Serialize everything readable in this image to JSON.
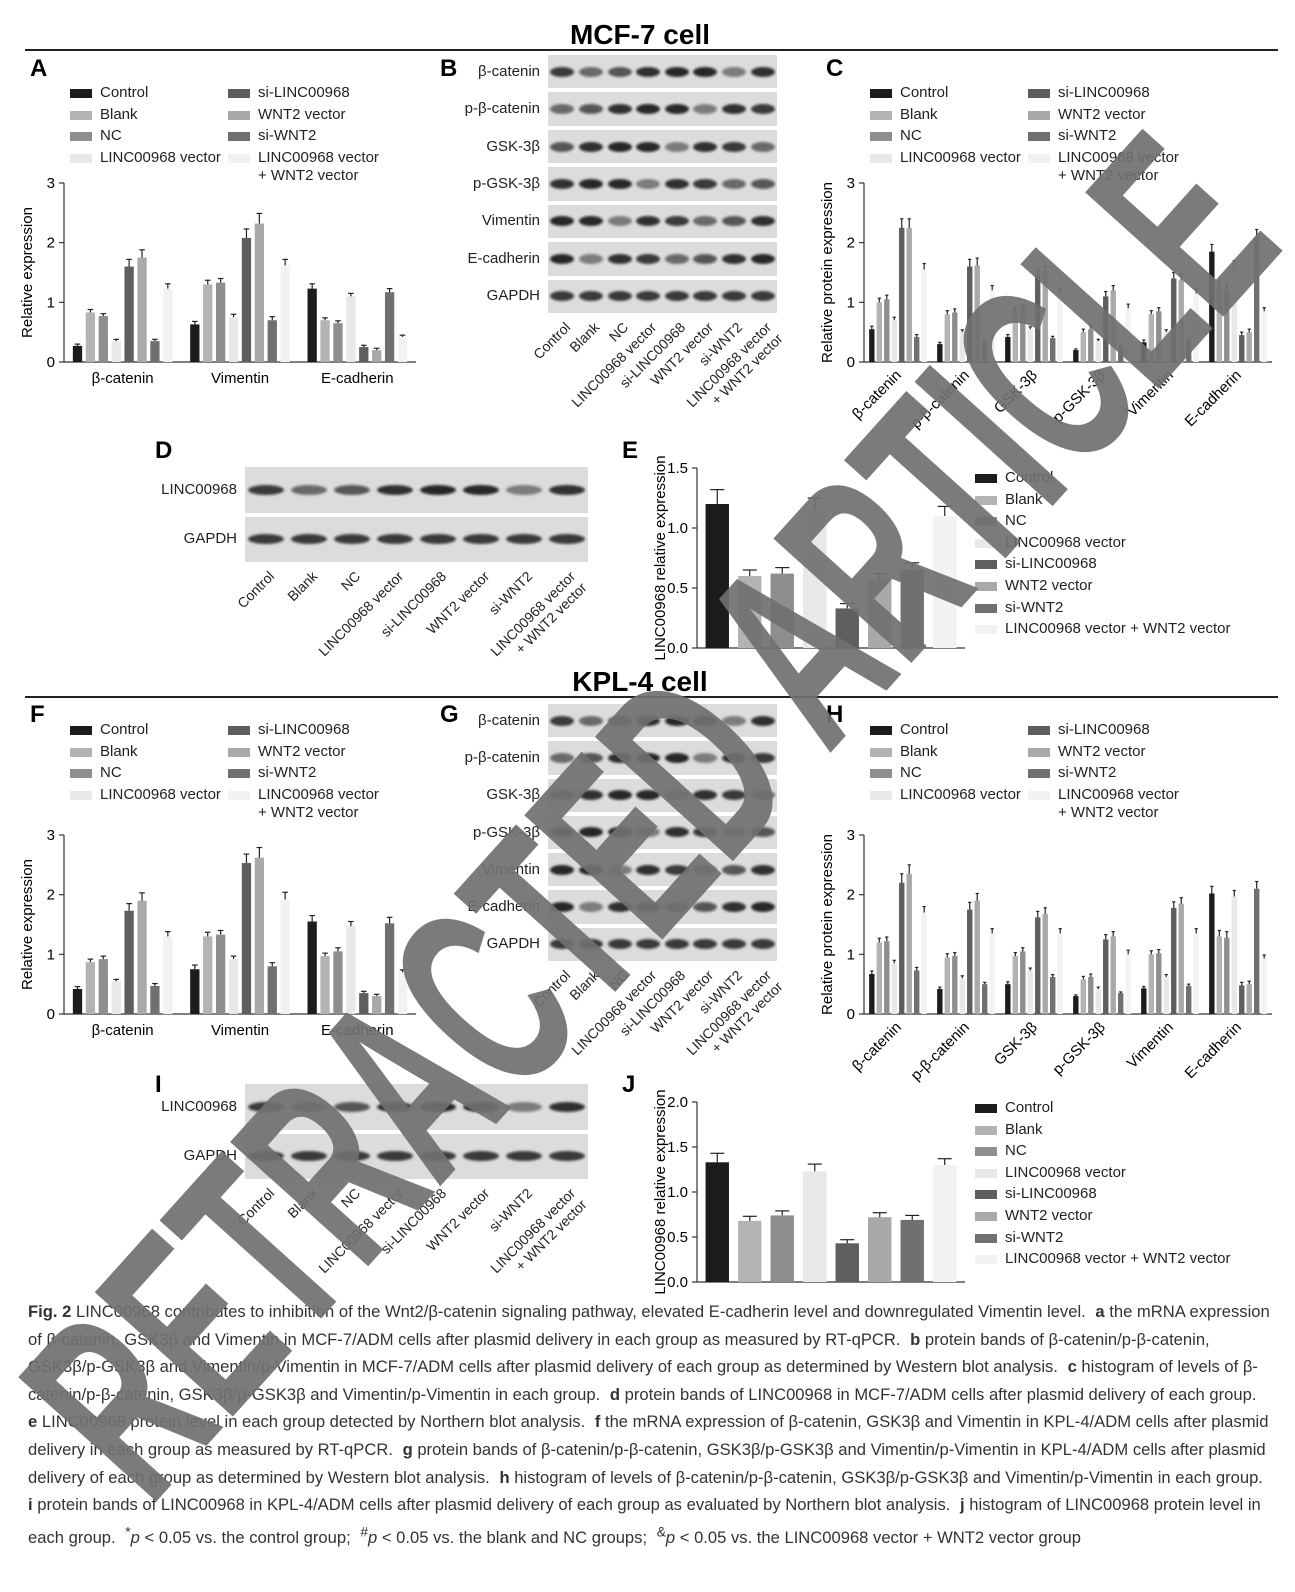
{
  "sections": [
    "MCF-7 cell",
    "KPL-4 cell"
  ],
  "watermark": "RETRACTED ARTICLE",
  "chart_data": [
    {
      "type": "bar",
      "panel": "A",
      "ylabel": "Relative expression",
      "categories": [
        "β-catenin",
        "Vimentin",
        "E-cadherin"
      ],
      "ylim": [
        0,
        3
      ],
      "yticks": [
        0,
        1,
        2,
        3
      ],
      "series": [
        {
          "name": "Control",
          "color": "#1c1c1c",
          "values": [
            0.27,
            0.63,
            1.23
          ],
          "errors": [
            0.03,
            0.05,
            0.08
          ]
        },
        {
          "name": "Blank",
          "color": "#b3b3b3",
          "values": [
            0.83,
            1.3,
            0.7
          ],
          "errors": [
            0.05,
            0.07,
            0.04
          ]
        },
        {
          "name": "NC",
          "color": "#8e8e8e",
          "values": [
            0.77,
            1.33,
            0.65
          ],
          "errors": [
            0.04,
            0.07,
            0.04
          ]
        },
        {
          "name": "LINC00968 vector",
          "color": "#e8e8e8",
          "values": [
            0.35,
            0.75,
            1.1
          ],
          "errors": [
            0.03,
            0.05,
            0.05
          ]
        },
        {
          "name": "si-LINC00968",
          "color": "#5e5e5e",
          "values": [
            1.6,
            2.08,
            0.25
          ],
          "errors": [
            0.12,
            0.15,
            0.03
          ]
        },
        {
          "name": "WNT2 vector",
          "color": "#a9a9a9",
          "values": [
            1.75,
            2.32,
            0.2
          ],
          "errors": [
            0.13,
            0.17,
            0.03
          ]
        },
        {
          "name": "si-WNT2",
          "color": "#707070",
          "values": [
            0.35,
            0.7,
            1.17
          ],
          "errors": [
            0.03,
            0.06,
            0.06
          ]
        },
        {
          "name": "LINC00968 vector\n+ WNT2 vector",
          "color": "#f2f2f2",
          "values": [
            1.23,
            1.62,
            0.42
          ],
          "errors": [
            0.08,
            0.1,
            0.03
          ]
        }
      ]
    },
    {
      "type": "bar",
      "panel": "C",
      "ylabel": "Relative protein expression",
      "categories": [
        "β-catenin",
        "p-β-catenin",
        "GSK-3β",
        "p-GSK-3β",
        "Vimentin",
        "E-cadherin"
      ],
      "ylim": [
        0,
        3
      ],
      "yticks": [
        0,
        1,
        2,
        3
      ],
      "series": [
        {
          "name": "Control",
          "color": "#1c1c1c",
          "values": [
            0.55,
            0.3,
            0.42,
            0.2,
            0.33,
            1.85
          ],
          "errors": [
            0.05,
            0.03,
            0.04,
            0.02,
            0.04,
            0.12
          ]
        },
        {
          "name": "Blank",
          "color": "#b3b3b3",
          "values": [
            1.0,
            0.8,
            0.85,
            0.5,
            0.8,
            1.25
          ],
          "errors": [
            0.07,
            0.06,
            0.06,
            0.05,
            0.06,
            0.1
          ]
        },
        {
          "name": "NC",
          "color": "#8e8e8e",
          "values": [
            1.05,
            0.83,
            0.9,
            0.55,
            0.85,
            1.2
          ],
          "errors": [
            0.07,
            0.06,
            0.06,
            0.05,
            0.06,
            0.1
          ]
        },
        {
          "name": "LINC00968 vector",
          "color": "#e8e8e8",
          "values": [
            0.7,
            0.5,
            0.55,
            0.35,
            0.5,
            1.6
          ],
          "errors": [
            0.05,
            0.04,
            0.04,
            0.03,
            0.04,
            0.1
          ]
        },
        {
          "name": "si-LINC00968",
          "color": "#5e5e5e",
          "values": [
            2.25,
            1.6,
            1.45,
            1.1,
            1.4,
            0.45
          ],
          "errors": [
            0.15,
            0.12,
            0.1,
            0.08,
            0.1,
            0.05
          ]
        },
        {
          "name": "WNT2 vector",
          "color": "#a9a9a9",
          "values": [
            2.25,
            1.62,
            1.5,
            1.2,
            1.38,
            0.5
          ],
          "errors": [
            0.15,
            0.12,
            0.1,
            0.08,
            0.1,
            0.05
          ]
        },
        {
          "name": "si-WNT2",
          "color": "#707070",
          "values": [
            0.42,
            0.33,
            0.4,
            0.25,
            0.35,
            2.1
          ],
          "errors": [
            0.04,
            0.03,
            0.03,
            0.02,
            0.03,
            0.12
          ]
        },
        {
          "name": "LINC00968 vector\n+ WNT2 vector",
          "color": "#f2f2f2",
          "values": [
            1.55,
            1.2,
            1.15,
            0.9,
            1.15,
            0.85
          ],
          "errors": [
            0.1,
            0.08,
            0.08,
            0.07,
            0.08,
            0.06
          ]
        }
      ]
    },
    {
      "type": "bar",
      "panel": "E",
      "ylabel": "LINC00968 relative expression",
      "ylim": [
        0,
        1.5
      ],
      "yticks": [
        {
          "value": 0,
          "label": "0.0"
        },
        0.5,
        {
          "value": 1,
          "label": "1.0"
        },
        1.5
      ],
      "series": [
        {
          "name": "Control",
          "color": "#1c1c1c",
          "values": [
            1.2
          ],
          "errors": [
            0.12
          ]
        },
        {
          "name": "Blank",
          "color": "#b3b3b3",
          "values": [
            0.6
          ],
          "errors": [
            0.05
          ]
        },
        {
          "name": "NC",
          "color": "#8e8e8e",
          "values": [
            0.62
          ],
          "errors": [
            0.05
          ]
        },
        {
          "name": "LINC00968 vector",
          "color": "#e8e8e8",
          "values": [
            1.15
          ],
          "errors": [
            0.1
          ]
        },
        {
          "name": "si-LINC00968",
          "color": "#5e5e5e",
          "values": [
            0.33
          ],
          "errors": [
            0.04
          ]
        },
        {
          "name": "WNT2 vector",
          "color": "#a9a9a9",
          "values": [
            0.57
          ],
          "errors": [
            0.05
          ]
        },
        {
          "name": "si-WNT2",
          "color": "#707070",
          "values": [
            0.65
          ],
          "errors": [
            0.06
          ]
        },
        {
          "name": "LINC00968 vector + WNT2 vector",
          "color": "#f2f2f2",
          "values": [
            1.1
          ],
          "errors": [
            0.08
          ]
        }
      ]
    },
    {
      "type": "bar",
      "panel": "F",
      "ylabel": "Relative expression",
      "categories": [
        "β-catenin",
        "Vimentin",
        "E-cadherin"
      ],
      "ylim": [
        0,
        3
      ],
      "yticks": [
        0,
        1,
        2,
        3
      ],
      "series": [
        {
          "name": "Control",
          "color": "#1c1c1c",
          "values": [
            0.42,
            0.75,
            1.55
          ],
          "errors": [
            0.04,
            0.07,
            0.1
          ]
        },
        {
          "name": "Blank",
          "color": "#b3b3b3",
          "values": [
            0.87,
            1.3,
            0.97
          ],
          "errors": [
            0.05,
            0.07,
            0.05
          ]
        },
        {
          "name": "NC",
          "color": "#8e8e8e",
          "values": [
            0.92,
            1.33,
            1.05
          ],
          "errors": [
            0.05,
            0.07,
            0.06
          ]
        },
        {
          "name": "LINC00968 vector",
          "color": "#e8e8e8",
          "values": [
            0.55,
            0.92,
            1.47
          ],
          "errors": [
            0.03,
            0.05,
            0.08
          ]
        },
        {
          "name": "si-LINC00968",
          "color": "#5e5e5e",
          "values": [
            1.73,
            2.53,
            0.35
          ],
          "errors": [
            0.12,
            0.15,
            0.03
          ]
        },
        {
          "name": "WNT2 vector",
          "color": "#a9a9a9",
          "values": [
            1.9,
            2.62,
            0.3
          ],
          "errors": [
            0.13,
            0.17,
            0.03
          ]
        },
        {
          "name": "si-WNT2",
          "color": "#707070",
          "values": [
            0.47,
            0.8,
            1.52
          ],
          "errors": [
            0.04,
            0.06,
            0.1
          ]
        },
        {
          "name": "LINC00968 vector\n+ WNT2 vector",
          "color": "#f2f2f2",
          "values": [
            1.3,
            1.92,
            0.7
          ],
          "errors": [
            0.08,
            0.12,
            0.04
          ]
        }
      ]
    },
    {
      "type": "bar",
      "panel": "H",
      "ylabel": "Relative protein expression",
      "categories": [
        "β-catenin",
        "p-β-catenin",
        "GSK-3β",
        "p-GSK-3β",
        "Vimentin",
        "E-cadherin"
      ],
      "ylim": [
        0,
        3
      ],
      "yticks": [
        0,
        1,
        2,
        3
      ],
      "series": [
        {
          "name": "Control",
          "color": "#1c1c1c",
          "values": [
            0.67,
            0.42,
            0.5,
            0.3,
            0.43,
            2.02
          ],
          "errors": [
            0.05,
            0.03,
            0.04,
            0.02,
            0.03,
            0.12
          ]
        },
        {
          "name": "Blank",
          "color": "#b3b3b3",
          "values": [
            1.2,
            0.95,
            0.97,
            0.58,
            1.0,
            1.3
          ],
          "errors": [
            0.07,
            0.06,
            0.06,
            0.05,
            0.06,
            0.1
          ]
        },
        {
          "name": "NC",
          "color": "#8e8e8e",
          "values": [
            1.22,
            0.97,
            1.05,
            0.62,
            1.02,
            1.28
          ],
          "errors": [
            0.07,
            0.06,
            0.06,
            0.05,
            0.06,
            0.1
          ]
        },
        {
          "name": "LINC00968 vector",
          "color": "#e8e8e8",
          "values": [
            0.85,
            0.6,
            0.73,
            0.42,
            0.62,
            1.97
          ],
          "errors": [
            0.05,
            0.04,
            0.04,
            0.03,
            0.04,
            0.1
          ]
        },
        {
          "name": "si-LINC00968",
          "color": "#5e5e5e",
          "values": [
            2.2,
            1.75,
            1.62,
            1.25,
            1.78,
            0.48
          ],
          "errors": [
            0.15,
            0.12,
            0.1,
            0.08,
            0.1,
            0.05
          ]
        },
        {
          "name": "WNT2 vector",
          "color": "#a9a9a9",
          "values": [
            2.35,
            1.9,
            1.68,
            1.3,
            1.85,
            0.5
          ],
          "errors": [
            0.15,
            0.12,
            0.1,
            0.08,
            0.1,
            0.05
          ]
        },
        {
          "name": "si-WNT2",
          "color": "#707070",
          "values": [
            0.73,
            0.5,
            0.62,
            0.35,
            0.47,
            2.1
          ],
          "errors": [
            0.05,
            0.03,
            0.04,
            0.02,
            0.03,
            0.12
          ]
        },
        {
          "name": "LINC00968 vector\n+ WNT2 vector",
          "color": "#f2f2f2",
          "values": [
            1.7,
            1.35,
            1.35,
            1.0,
            1.35,
            0.93
          ],
          "errors": [
            0.1,
            0.08,
            0.08,
            0.07,
            0.08,
            0.06
          ]
        }
      ]
    },
    {
      "type": "bar",
      "panel": "J",
      "ylabel": "LINC00968 relative expression",
      "ylim": [
        0,
        2
      ],
      "yticks": [
        {
          "value": 0,
          "label": "0.0"
        },
        0.5,
        {
          "value": 1,
          "label": "1.0"
        },
        1.5,
        {
          "value": 2,
          "label": "2.0"
        }
      ],
      "series": [
        {
          "name": "Control",
          "color": "#1c1c1c",
          "values": [
            1.33
          ],
          "errors": [
            0.1
          ]
        },
        {
          "name": "Blank",
          "color": "#b3b3b3",
          "values": [
            0.68
          ],
          "errors": [
            0.05
          ]
        },
        {
          "name": "NC",
          "color": "#8e8e8e",
          "values": [
            0.74
          ],
          "errors": [
            0.05
          ]
        },
        {
          "name": "LINC00968 vector",
          "color": "#e8e8e8",
          "values": [
            1.23
          ],
          "errors": [
            0.08
          ]
        },
        {
          "name": "si-LINC00968",
          "color": "#5e5e5e",
          "values": [
            0.43
          ],
          "errors": [
            0.04
          ]
        },
        {
          "name": "WNT2 vector",
          "color": "#a9a9a9",
          "values": [
            0.72
          ],
          "errors": [
            0.05
          ]
        },
        {
          "name": "si-WNT2",
          "color": "#707070",
          "values": [
            0.69
          ],
          "errors": [
            0.05
          ]
        },
        {
          "name": "LINC00968 vector + WNT2 vector",
          "color": "#f2f2f2",
          "values": [
            1.3
          ],
          "errors": [
            0.07
          ]
        }
      ]
    }
  ],
  "blots": [
    {
      "panel": "B",
      "rows": [
        "β-catenin",
        "p-β-catenin",
        "GSK-3β",
        "p-GSK-3β",
        "Vimentin",
        "E-cadherin",
        "GAPDH"
      ],
      "lanes": [
        "Control",
        "Blank",
        "NC",
        "LINC00968 vector",
        "si-LINC00968",
        "WNT2 vector",
        "si-WNT2",
        "LINC00968 vector\n+ WNT2 vector"
      ]
    },
    {
      "panel": "D",
      "rows": [
        "LINC00968",
        "GAPDH"
      ],
      "lanes": [
        "Control",
        "Blank",
        "NC",
        "LINC00968 vector",
        "si-LINC00968",
        "WNT2 vector",
        "si-WNT2",
        "LINC00968 vector\n+ WNT2 vector"
      ]
    },
    {
      "panel": "G",
      "rows": [
        "β-catenin",
        "p-β-catenin",
        "GSK-3β",
        "p-GSK-3β",
        "Vimentin",
        "E-cadherin",
        "GAPDH"
      ],
      "lanes": [
        "Control",
        "Blank",
        "NC",
        "LINC00968 vector",
        "si-LINC00968",
        "WNT2 vector",
        "si-WNT2",
        "LINC00968 vector\n+ WNT2 vector"
      ]
    },
    {
      "panel": "I",
      "rows": [
        "LINC00968",
        "GAPDH"
      ],
      "lanes": [
        "Control",
        "Blank",
        "NC",
        "LINC00968 vector",
        "si-LINC00968",
        "WNT2 vector",
        "si-WNT2",
        "LINC00968 vector\n+ WNT2 vector"
      ]
    }
  ],
  "caption": {
    "label": "Fig. 2",
    "intro": "LINC00968 contributes to inhibition of the Wnt2/β-catenin signaling pathway, elevated E-cadherin level and downregulated Vimentin level.",
    "items": [
      {
        "key": "a",
        "text": "the mRNA expression of β-catenin, GSK3β and Vimentin in MCF-7/ADM cells after plasmid delivery in each group as measured by RT-qPCR."
      },
      {
        "key": "b",
        "text": "protein bands of β-catenin/p-β-catenin, GSK3β/p-GSK3β and Vimentin/p-Vimentin in MCF-7/ADM cells after plasmid delivery of each group as determined by Western blot analysis."
      },
      {
        "key": "c",
        "text": "histogram of levels of β-catenin/p-β-catenin, GSK3β/p-GSK3β and Vimentin/p-Vimentin in each group."
      },
      {
        "key": "d",
        "text": "protein bands of LINC00968 in MCF-7/ADM cells after plasmid delivery of each group."
      },
      {
        "key": "e",
        "text": "LINC00968 protein level in each group detected by Northern blot analysis."
      },
      {
        "key": "f",
        "text": "the mRNA expression of β-catenin, GSK3β and Vimentin in KPL-4/ADM cells after plasmid delivery in each group as measured by RT-qPCR."
      },
      {
        "key": "g",
        "text": "protein bands of β-catenin/p-β-catenin, GSK3β/p-GSK3β and Vimentin/p-Vimentin in KPL-4/ADM cells after plasmid delivery of each group as determined by Western blot analysis."
      },
      {
        "key": "h",
        "text": "histogram of levels of β-catenin/p-β-catenin, GSK3β/p-GSK3β and Vimentin/p-Vimentin in each group."
      },
      {
        "key": "i",
        "text": "protein bands of LINC00968 in KPL-4/ADM cells after plasmid delivery of each group as evaluated by Northern blot analysis."
      },
      {
        "key": "j",
        "text": "histogram of LINC00968 protein level in each group."
      }
    ],
    "notes": [
      "*p < 0.05 vs. the control group;",
      "#p < 0.05 vs. the blank and NC groups;",
      "&p < 0.05 vs. the LINC00968 vector + WNT2 vector group"
    ]
  }
}
